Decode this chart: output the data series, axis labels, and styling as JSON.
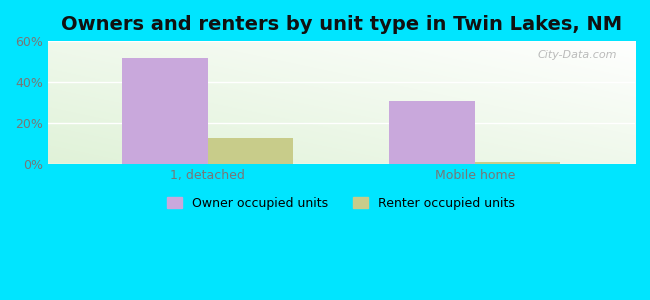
{
  "title": "Owners and renters by unit type in Twin Lakes, NM",
  "categories": [
    "1, detached",
    "Mobile home"
  ],
  "owner_values": [
    52,
    31
  ],
  "renter_values": [
    13,
    1
  ],
  "owner_color": "#c9a8dc",
  "renter_color": "#c8cc8a",
  "ylim": [
    0,
    60
  ],
  "yticks": [
    0,
    20,
    40,
    60
  ],
  "ytick_labels": [
    "0%",
    "20%",
    "40%",
    "60%"
  ],
  "bar_width": 0.32,
  "legend_owner": "Owner occupied units",
  "legend_renter": "Renter occupied units",
  "outer_background": "#00e5ff",
  "title_fontsize": 14,
  "watermark": "City-Data.com",
  "grid_color": "#d8eed8",
  "tick_color": "#777777"
}
